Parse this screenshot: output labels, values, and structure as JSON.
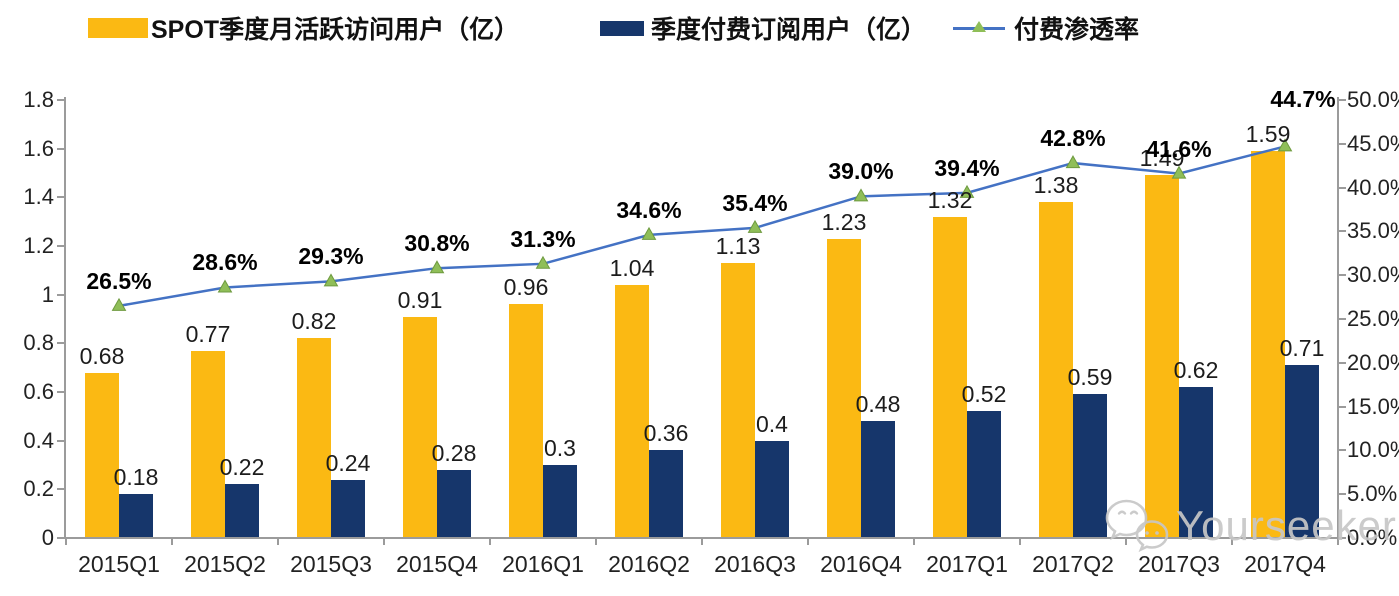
{
  "chart_data": {
    "type": "combo-bar-line",
    "categories": [
      "2015Q1",
      "2015Q2",
      "2015Q3",
      "2015Q4",
      "2016Q1",
      "2016Q2",
      "2016Q3",
      "2016Q4",
      "2017Q1",
      "2017Q2",
      "2017Q3",
      "2017Q4"
    ],
    "series": [
      {
        "name": "SPOT季度月活跃访问用户（亿）",
        "type": "bar",
        "axis": "left",
        "color": "#FBB913",
        "values": [
          0.68,
          0.77,
          0.82,
          0.91,
          0.96,
          1.04,
          1.13,
          1.23,
          1.32,
          1.38,
          1.49,
          1.59
        ],
        "labels": [
          "0.68",
          "0.77",
          "0.82",
          "0.91",
          "0.96",
          "1.04",
          "1.13",
          "1.23",
          "1.32",
          "1.38",
          "1.49",
          "1.59"
        ]
      },
      {
        "name": "季度付费订阅用户（亿）",
        "type": "bar",
        "axis": "left",
        "color": "#16366B",
        "values": [
          0.18,
          0.22,
          0.24,
          0.28,
          0.3,
          0.36,
          0.4,
          0.48,
          0.52,
          0.59,
          0.62,
          0.71
        ],
        "labels": [
          "0.18",
          "0.22",
          "0.24",
          "0.28",
          "0.3",
          "0.36",
          "0.4",
          "0.48",
          "0.52",
          "0.59",
          "0.62",
          "0.71"
        ]
      },
      {
        "name": "付费渗透率",
        "type": "line",
        "axis": "right",
        "color": "#4472C4",
        "marker": "triangle",
        "marker_color": "#8FBE58",
        "marker_edge_color": "#6E9A3F",
        "values": [
          26.5,
          28.6,
          29.3,
          30.8,
          31.3,
          34.6,
          35.4,
          39.0,
          39.4,
          42.8,
          41.6,
          44.7
        ],
        "labels": [
          "26.5%",
          "28.6%",
          "29.3%",
          "30.8%",
          "31.3%",
          "34.6%",
          "35.4%",
          "39.0%",
          "39.4%",
          "42.8%",
          "41.6%",
          "44.7%"
        ]
      }
    ],
    "left_axis": {
      "min": 0,
      "max": 1.8,
      "ticks": [
        "0",
        "0.2",
        "0.4",
        "0.6",
        "0.8",
        "1",
        "1.2",
        "1.4",
        "1.6",
        "1.8"
      ]
    },
    "right_axis": {
      "min": 0,
      "max": 50,
      "ticks": [
        "0.0%",
        "5.0%",
        "10.0%",
        "15.0%",
        "20.0%",
        "25.0%",
        "30.0%",
        "35.0%",
        "40.0%",
        "45.0%",
        "50.0%"
      ]
    },
    "grid": false,
    "legend_position": "top"
  },
  "watermark": {
    "text": "Yourseeker",
    "icon": "wechat-icon",
    "color": "#C7C7C7"
  }
}
